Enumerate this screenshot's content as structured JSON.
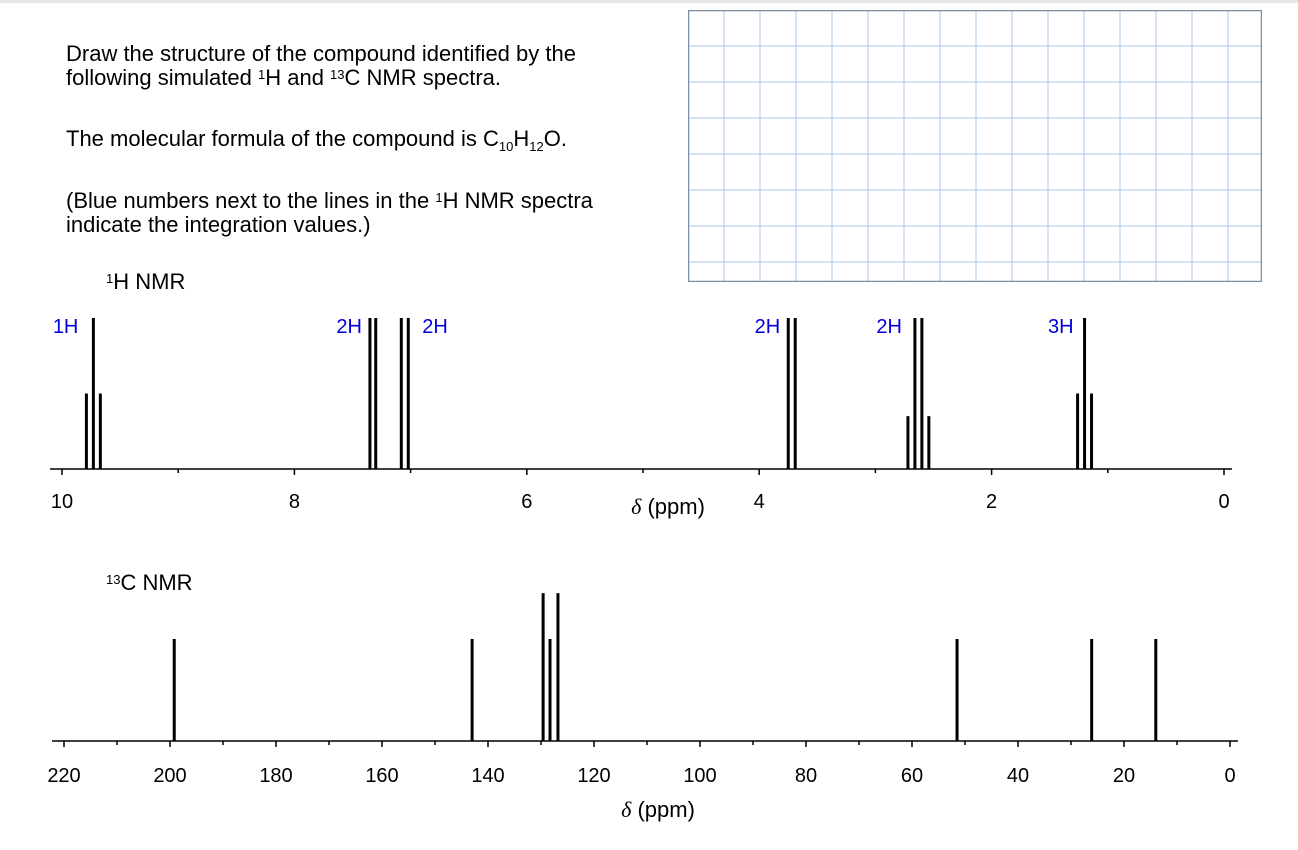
{
  "question": {
    "line1": "Draw the structure of the compound identified by the",
    "line2a": "following simulated ",
    "line2b": "H and ",
    "line2c": "C NMR spectra.",
    "sup1": "1",
    "sup13": "13",
    "formula_pre": "The molecular formula of the compound is C",
    "formula_c": "10",
    "formula_h_letter": "H",
    "formula_h": "12",
    "formula_post": "O.",
    "note1a": "(Blue numbers next to the lines in the ",
    "note1b": "H NMR spectra",
    "note2": "indicate the integration values.)"
  },
  "labels": {
    "h_sup": "1",
    "h_text": "H NMR",
    "c_sup": "13",
    "c_text": "C NMR"
  },
  "colors": {
    "integration": "#0000dd",
    "grid": "#a9c9e6",
    "grid_border": "#7a8ea3",
    "axis": "#000000"
  },
  "chart_data": [
    {
      "type": "bar",
      "title": "1H NMR",
      "xlabel": "δ (ppm)",
      "xlim": [
        10,
        0
      ],
      "x_ticks": [
        10,
        8,
        6,
        4,
        2,
        0
      ],
      "x_minor_ticks": [
        9,
        7,
        5,
        3,
        1
      ],
      "peaks": [
        {
          "shift": 9.73,
          "multiplicity": "triplet",
          "integration": "1H",
          "lines": [
            [
              9.79,
              0.5
            ],
            [
              9.73,
              1.0
            ],
            [
              9.67,
              0.5
            ]
          ]
        },
        {
          "shift": 7.32,
          "multiplicity": "doublet",
          "integration": "2H",
          "lines": [
            [
              7.35,
              1.0
            ],
            [
              7.3,
              1.0
            ]
          ]
        },
        {
          "shift": 7.05,
          "multiplicity": "doublet",
          "integration": "2H",
          "lines": [
            [
              7.08,
              1.0
            ],
            [
              7.02,
              1.0
            ]
          ]
        },
        {
          "shift": 3.72,
          "multiplicity": "doublet",
          "integration": "2H",
          "lines": [
            [
              3.75,
              1.0
            ],
            [
              3.69,
              1.0
            ]
          ]
        },
        {
          "shift": 2.63,
          "multiplicity": "quartet",
          "integration": "2H",
          "lines": [
            [
              2.72,
              0.35
            ],
            [
              2.66,
              1.0
            ],
            [
              2.6,
              1.0
            ],
            [
              2.54,
              0.35
            ]
          ]
        },
        {
          "shift": 1.2,
          "multiplicity": "triplet",
          "integration": "3H",
          "lines": [
            [
              1.26,
              0.5
            ],
            [
              1.2,
              1.0
            ],
            [
              1.14,
              0.5
            ]
          ]
        }
      ]
    },
    {
      "type": "bar",
      "title": "13C NMR",
      "xlabel": "δ (ppm)",
      "xlim": [
        220,
        0
      ],
      "x_ticks": [
        220,
        200,
        180,
        160,
        140,
        120,
        100,
        80,
        60,
        40,
        20,
        0
      ],
      "x_minor_ticks": [
        210,
        190,
        170,
        150,
        130,
        110,
        90,
        70,
        50,
        30,
        10
      ],
      "peaks": [
        {
          "shift": 199.2,
          "height": 1.0
        },
        {
          "shift": 143.0,
          "height": 1.0
        },
        {
          "shift": 129.6,
          "height": 1.45
        },
        {
          "shift": 128.3,
          "height": 1.0
        },
        {
          "shift": 126.8,
          "height": 1.45
        },
        {
          "shift": 51.5,
          "height": 1.0
        },
        {
          "shift": 26.1,
          "height": 1.0
        },
        {
          "shift": 14.0,
          "height": 1.0
        }
      ]
    }
  ]
}
